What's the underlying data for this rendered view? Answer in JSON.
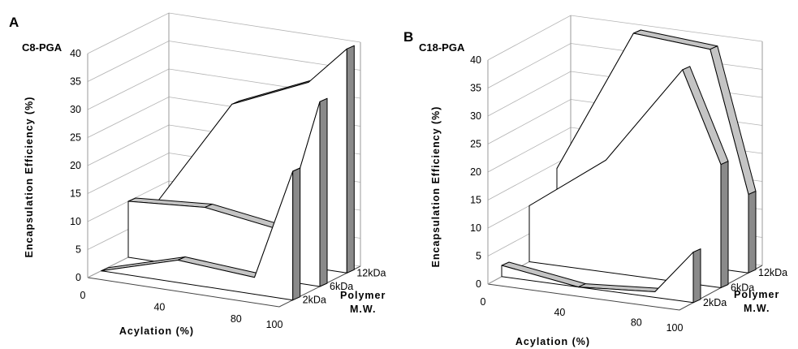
{
  "figure": {
    "panels": [
      {
        "letter": "A",
        "title": "C8-PGA",
        "chart_data": {
          "type": "area",
          "chart_style": "3d-ribbon-area",
          "x": [
            0,
            40,
            80,
            100
          ],
          "series": [
            {
              "name": "2kDa",
              "values": [
                0,
                4,
                3,
                23
              ]
            },
            {
              "name": "6kDa",
              "values": [
                10,
                11,
                9,
                33
              ]
            },
            {
              "name": "12kDa",
              "values": [
                7,
                27,
                33,
                40
              ]
            }
          ],
          "xlabel": "Acylation (%)",
          "ylabel": "Encapsulation Efficiency (%)",
          "zlabel": "Polymer M.W.",
          "xticks": [
            "0",
            "40",
            "80",
            "100"
          ],
          "yticks": [
            "0",
            "5",
            "10",
            "15",
            "20",
            "25",
            "30",
            "35",
            "40"
          ],
          "zticks": [
            "2kDa",
            "6kDa",
            "12kDa"
          ],
          "ylim": [
            0,
            40
          ]
        }
      },
      {
        "letter": "B",
        "title": "C18-PGA",
        "chart_data": {
          "type": "area",
          "chart_style": "3d-ribbon-area",
          "x": [
            0,
            40,
            80,
            100
          ],
          "series": [
            {
              "name": "2kDa",
              "values": [
                2,
                0,
                1,
                9
              ]
            },
            {
              "name": "6kDa",
              "values": [
                10,
                20,
                38,
                22
              ]
            },
            {
              "name": "12kDa",
              "values": [
                14,
                40,
                39,
                14
              ]
            }
          ],
          "xlabel": "Acylation (%)",
          "ylabel": "Encapsulation Efficiency (%)",
          "zlabel": "Polymer M.W.",
          "xticks": [
            "0",
            "40",
            "80",
            "100"
          ],
          "yticks": [
            "0",
            "5",
            "10",
            "15",
            "20",
            "25",
            "30",
            "35",
            "40"
          ],
          "zticks": [
            "2kDa",
            "6kDa",
            "12kDa"
          ],
          "ylim": [
            0,
            40
          ]
        }
      }
    ],
    "colors": {
      "front_face": "#ffffff",
      "top_surface": "#c4c4c4",
      "side_face": "#8a8a8a",
      "stroke": "#000000"
    }
  }
}
